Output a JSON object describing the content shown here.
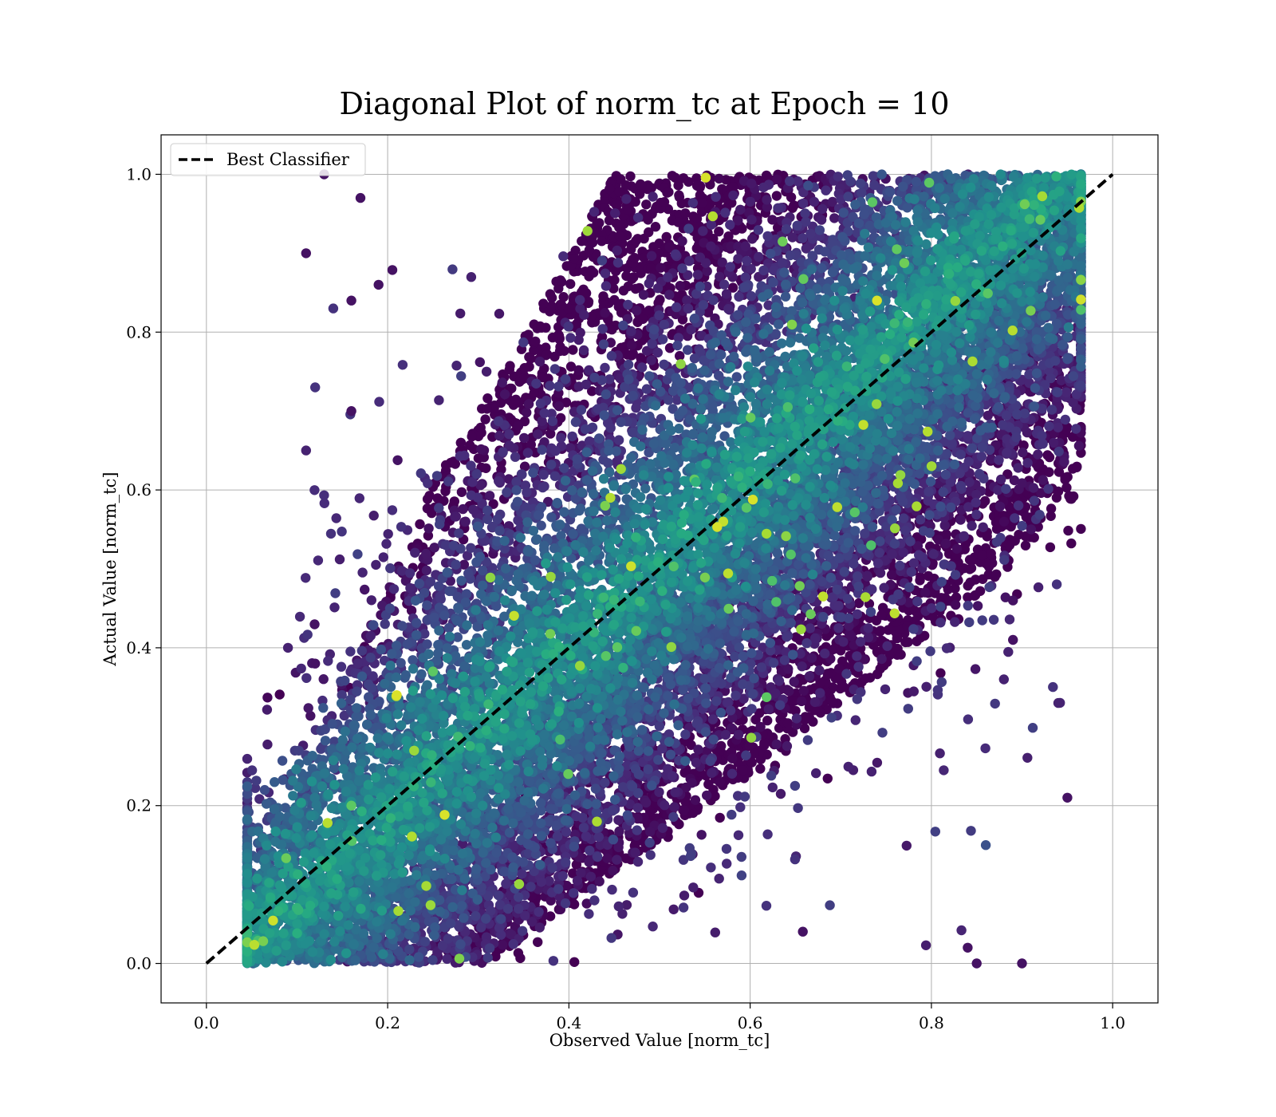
{
  "chart_data": {
    "type": "scatter",
    "title": "Diagonal Plot of norm_tc at Epoch = 10",
    "xlabel": "Observed Value [norm_tc]",
    "ylabel": "Actual Value [norm_tc]",
    "xlim": [
      -0.05,
      1.05
    ],
    "ylim": [
      -0.05,
      1.05
    ],
    "xticks": [
      0.0,
      0.2,
      0.4,
      0.6,
      0.8,
      1.0
    ],
    "yticks": [
      0.0,
      0.2,
      0.4,
      0.6,
      0.8,
      1.0
    ],
    "xtick_labels": [
      "0.0",
      "0.2",
      "0.4",
      "0.6",
      "0.8",
      "1.0"
    ],
    "ytick_labels": [
      "0.0",
      "0.2",
      "0.4",
      "0.6",
      "0.8",
      "1.0"
    ],
    "grid": true,
    "colormap": "viridis",
    "legend": {
      "placement": "upper-left",
      "entries": [
        {
          "label": "Best Classifier",
          "style": "dashed",
          "color": "#000000"
        }
      ]
    },
    "reference_line": {
      "name": "Best Classifier",
      "x": [
        0.0,
        1.0
      ],
      "y": [
        0.0,
        1.0
      ],
      "style": "dashed",
      "color": "#000000"
    },
    "scatter_series": {
      "approximate_count": 60000,
      "outliers": [
        {
          "x": 0.11,
          "y": 0.9,
          "c": 0.05
        },
        {
          "x": 0.12,
          "y": 0.73,
          "c": 0.15
        },
        {
          "x": 0.11,
          "y": 0.65,
          "c": 0.1
        },
        {
          "x": 0.09,
          "y": 0.4,
          "c": 0.1
        },
        {
          "x": 0.13,
          "y": 1.0,
          "c": 0.05
        },
        {
          "x": 0.17,
          "y": 0.97,
          "c": 0.05
        },
        {
          "x": 0.14,
          "y": 0.83,
          "c": 0.15
        },
        {
          "x": 0.16,
          "y": 0.84,
          "c": 0.05
        },
        {
          "x": 0.19,
          "y": 0.86,
          "c": 0.05
        },
        {
          "x": 0.16,
          "y": 0.7,
          "c": 0.05
        },
        {
          "x": 0.12,
          "y": 0.38,
          "c": 0.05
        },
        {
          "x": 0.94,
          "y": 0.33,
          "c": 0.1
        },
        {
          "x": 0.95,
          "y": 0.21,
          "c": 0.05
        },
        {
          "x": 0.91,
          "y": 0.55,
          "c": 0.05
        },
        {
          "x": 0.9,
          "y": 0.0,
          "c": 0.05
        },
        {
          "x": 0.89,
          "y": 0.46,
          "c": 0.05
        },
        {
          "x": 0.88,
          "y": 0.36,
          "c": 0.1
        },
        {
          "x": 0.89,
          "y": 0.41,
          "c": 0.05
        },
        {
          "x": 0.86,
          "y": 0.15,
          "c": 0.25
        },
        {
          "x": 0.85,
          "y": 0.0,
          "c": 0.05
        },
        {
          "x": 0.84,
          "y": 0.02,
          "c": 0.05
        },
        {
          "x": 0.21,
          "y": 0.34,
          "c": 0.95
        },
        {
          "x": 0.38,
          "y": 0.49,
          "c": 0.85
        },
        {
          "x": 0.74,
          "y": 0.84,
          "c": 0.95
        },
        {
          "x": 0.44,
          "y": 0.58,
          "c": 0.8
        },
        {
          "x": 0.54,
          "y": 0.61,
          "c": 0.65
        },
        {
          "x": 0.16,
          "y": 0.2,
          "c": 0.75
        },
        {
          "x": 0.25,
          "y": 0.37,
          "c": 0.75
        }
      ]
    }
  }
}
